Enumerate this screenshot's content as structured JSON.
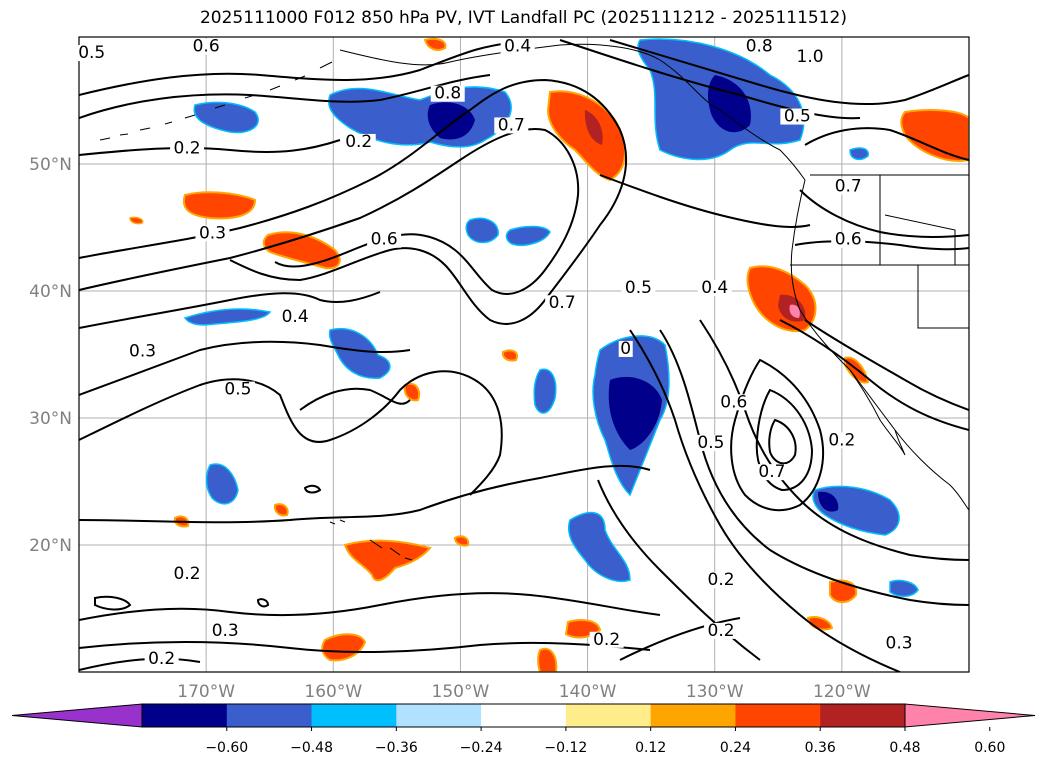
{
  "title": "2025111000 F012 850 hPa PV, IVT Landfall PC (2025111212 - 2025111512)",
  "map": {
    "lat_ticks": [
      {
        "label": "50°N",
        "lat": 50
      },
      {
        "label": "40°N",
        "lat": 40
      },
      {
        "label": "30°N",
        "lat": 30
      },
      {
        "label": "20°N",
        "lat": 20
      }
    ],
    "lon_ticks": [
      {
        "label": "170°W",
        "lon": -170
      },
      {
        "label": "160°W",
        "lon": -160
      },
      {
        "label": "150°W",
        "lon": -150
      },
      {
        "label": "140°W",
        "lon": -140
      },
      {
        "label": "130°W",
        "lon": -130
      },
      {
        "label": "120°W",
        "lon": -120
      }
    ],
    "contour_labels": [
      {
        "text": "0.5",
        "lon": -179,
        "lat": 58.5
      },
      {
        "text": "0.6",
        "lon": -170,
        "lat": 59
      },
      {
        "text": "0.2",
        "lon": -171.5,
        "lat": 51
      },
      {
        "text": "0.2",
        "lon": -158,
        "lat": 51.5
      },
      {
        "text": "0.3",
        "lon": -169.5,
        "lat": 44.3
      },
      {
        "text": "0.4",
        "lon": -163,
        "lat": 37.7
      },
      {
        "text": "0.3",
        "lon": -175,
        "lat": 35
      },
      {
        "text": "0.5",
        "lon": -167.5,
        "lat": 32
      },
      {
        "text": "0.8",
        "lon": -151,
        "lat": 55.3
      },
      {
        "text": "0.4",
        "lon": -145.5,
        "lat": 59
      },
      {
        "text": "0.7",
        "lon": -146,
        "lat": 52.8
      },
      {
        "text": "0.6",
        "lon": -156,
        "lat": 43.8
      },
      {
        "text": "0.7",
        "lon": -142,
        "lat": 38.8
      },
      {
        "text": "0.5",
        "lon": -136,
        "lat": 40
      },
      {
        "text": "0.4",
        "lon": -130,
        "lat": 40
      },
      {
        "text": "0.8",
        "lon": -126.5,
        "lat": 59
      },
      {
        "text": "1.0",
        "lon": -122.5,
        "lat": 58.2
      },
      {
        "text": "0.5",
        "lon": -123.5,
        "lat": 53.5
      },
      {
        "text": "0.7",
        "lon": -119.5,
        "lat": 48
      },
      {
        "text": "0.6",
        "lon": -119.5,
        "lat": 43.8
      },
      {
        "text": "0",
        "lon": -137,
        "lat": 35.2
      },
      {
        "text": "0.6",
        "lon": -128.5,
        "lat": 31
      },
      {
        "text": "0.5",
        "lon": -130.3,
        "lat": 27.8
      },
      {
        "text": "0.7",
        "lon": -125.5,
        "lat": 25.5
      },
      {
        "text": "0.2",
        "lon": -120,
        "lat": 28
      },
      {
        "text": "0.2",
        "lon": -129.5,
        "lat": 17
      },
      {
        "text": "0.2",
        "lon": -129.5,
        "lat": 13
      },
      {
        "text": "0.2",
        "lon": -171.5,
        "lat": 17.5
      },
      {
        "text": "0.3",
        "lon": -168.5,
        "lat": 13
      },
      {
        "text": "0.2",
        "lon": -173.5,
        "lat": 10.8
      },
      {
        "text": "0.2",
        "lon": -138.5,
        "lat": 12.3
      },
      {
        "text": "0.3",
        "lon": -115.5,
        "lat": 12
      }
    ]
  },
  "colorbar": {
    "colors": [
      "#9932cc",
      "#00008b",
      "#3a5fcd",
      "#00bfff",
      "#b0e2ff",
      "#ffffff",
      "#ffec8b",
      "#ffa500",
      "#ff4500",
      "#b22222",
      "#ff82ab"
    ],
    "ticks": [
      "−0.60",
      "−0.48",
      "−0.36",
      "−0.24",
      "−0.12",
      "0.12",
      "0.24",
      "0.36",
      "0.48",
      "0.60"
    ]
  }
}
